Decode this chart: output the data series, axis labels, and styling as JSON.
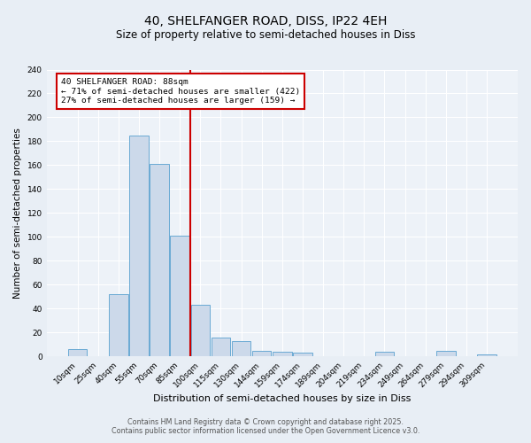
{
  "title": "40, SHELFANGER ROAD, DISS, IP22 4EH",
  "subtitle": "Size of property relative to semi-detached houses in Diss",
  "xlabel": "Distribution of semi-detached houses by size in Diss",
  "ylabel": "Number of semi-detached properties",
  "bin_labels": [
    "10sqm",
    "25sqm",
    "40sqm",
    "55sqm",
    "70sqm",
    "85sqm",
    "100sqm",
    "115sqm",
    "130sqm",
    "144sqm",
    "159sqm",
    "174sqm",
    "189sqm",
    "204sqm",
    "219sqm",
    "234sqm",
    "249sqm",
    "264sqm",
    "279sqm",
    "294sqm",
    "309sqm"
  ],
  "bar_heights": [
    6,
    0,
    52,
    185,
    161,
    101,
    43,
    16,
    13,
    5,
    4,
    3,
    0,
    0,
    0,
    4,
    0,
    0,
    5,
    0,
    2
  ],
  "bar_color": "#ccd9ea",
  "bar_edge_color": "#6aaad4",
  "vline_color": "#cc0000",
  "vline_bin_index": 5,
  "annotation_title": "40 SHELFANGER ROAD: 88sqm",
  "annotation_line1": "← 71% of semi-detached houses are smaller (422)",
  "annotation_line2": "27% of semi-detached houses are larger (159) →",
  "annotation_box_color": "#cc0000",
  "ylim": [
    0,
    240
  ],
  "yticks": [
    0,
    20,
    40,
    60,
    80,
    100,
    120,
    140,
    160,
    180,
    200,
    220,
    240
  ],
  "footer1": "Contains HM Land Registry data © Crown copyright and database right 2025.",
  "footer2": "Contains public sector information licensed under the Open Government Licence v3.0.",
  "bg_color": "#e8eef5",
  "plot_bg_color": "#edf2f8",
  "grid_color": "#ffffff",
  "title_fontsize": 10,
  "subtitle_fontsize": 8.5,
  "xlabel_fontsize": 8,
  "ylabel_fontsize": 7.5,
  "tick_fontsize": 6.5,
  "footer_fontsize": 5.8,
  "ann_fontsize": 6.8
}
